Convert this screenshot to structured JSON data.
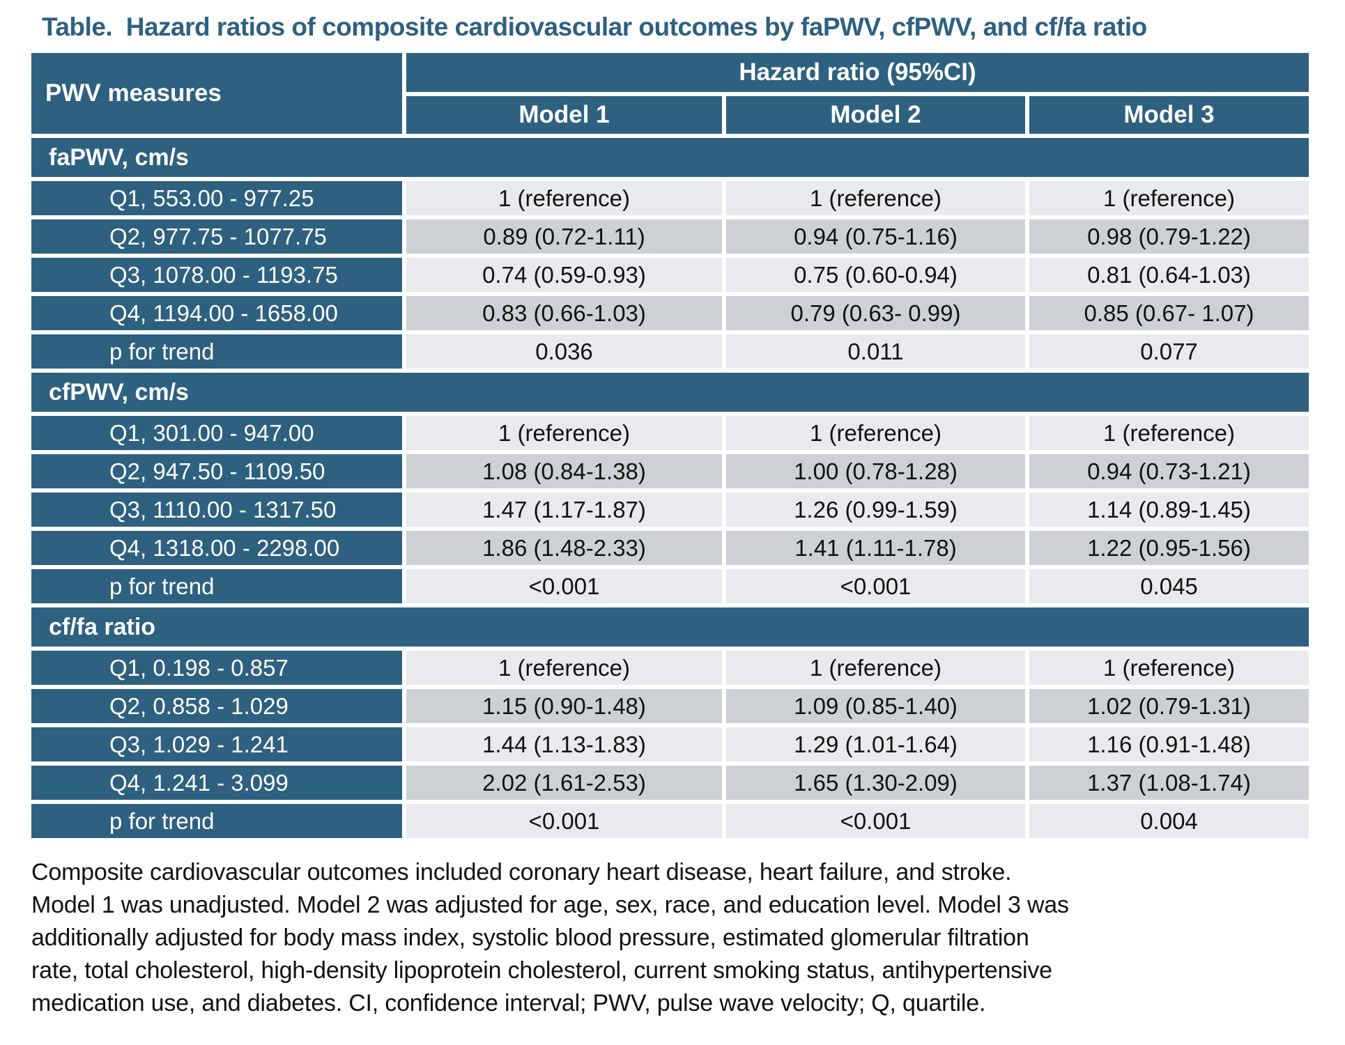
{
  "title": "Table.  Hazard ratios of composite cardiovascular outcomes by faPWV, cfPWV, and cf/fa ratio",
  "colors": {
    "header_blue": "#2E6080",
    "row_light": "#E8EAED",
    "row_dark": "#CDD1D5",
    "title_text": "#2E6080",
    "value_text": "#111111"
  },
  "table": {
    "row_header": "PWV measures",
    "group_header": "Hazard ratio (95%CI)",
    "model_headers": [
      "Model 1",
      "Model 2",
      "Model 3"
    ],
    "sections": [
      {
        "label": "faPWV, cm/s",
        "rows": [
          {
            "label": "Q1, 553.00 - 977.25",
            "values": [
              "1 (reference)",
              "1 (reference)",
              "1 (reference)"
            ]
          },
          {
            "label": "Q2, 977.75 - 1077.75",
            "values": [
              "0.89 (0.72-1.11)",
              "0.94 (0.75-1.16)",
              "0.98 (0.79-1.22)"
            ]
          },
          {
            "label": "Q3, 1078.00 - 1193.75",
            "values": [
              "0.74 (0.59-0.93)",
              "0.75 (0.60-0.94)",
              "0.81 (0.64-1.03)"
            ]
          },
          {
            "label": "Q4, 1194.00 - 1658.00",
            "values": [
              "0.83 (0.66-1.03)",
              "0.79 (0.63- 0.99)",
              "0.85 (0.67- 1.07)"
            ]
          },
          {
            "label": "p for trend",
            "values": [
              "0.036",
              "0.011",
              "0.077"
            ]
          }
        ]
      },
      {
        "label": "cfPWV, cm/s",
        "rows": [
          {
            "label": "Q1, 301.00 - 947.00",
            "values": [
              "1 (reference)",
              "1 (reference)",
              "1 (reference)"
            ]
          },
          {
            "label": "Q2, 947.50 - 1109.50",
            "values": [
              "1.08 (0.84-1.38)",
              "1.00 (0.78-1.28)",
              "0.94 (0.73-1.21)"
            ]
          },
          {
            "label": "Q3, 1110.00 - 1317.50",
            "values": [
              "1.47 (1.17-1.87)",
              "1.26 (0.99-1.59)",
              "1.14 (0.89-1.45)"
            ]
          },
          {
            "label": "Q4, 1318.00 - 2298.00",
            "values": [
              "1.86 (1.48-2.33)",
              "1.41 (1.11-1.78)",
              "1.22 (0.95-1.56)"
            ]
          },
          {
            "label": "p for trend",
            "values": [
              "<0.001",
              "<0.001",
              "0.045"
            ]
          }
        ]
      },
      {
        "label": "cf/fa ratio",
        "rows": [
          {
            "label": "Q1, 0.198 - 0.857",
            "values": [
              "1 (reference)",
              "1 (reference)",
              "1 (reference)"
            ]
          },
          {
            "label": "Q2, 0.858 - 1.029",
            "values": [
              "1.15 (0.90-1.48)",
              "1.09 (0.85-1.40)",
              "1.02 (0.79-1.31)"
            ]
          },
          {
            "label": "Q3, 1.029 - 1.241",
            "values": [
              "1.44 (1.13-1.83)",
              "1.29 (1.01-1.64)",
              "1.16 (0.91-1.48)"
            ]
          },
          {
            "label": "Q4, 1.241 - 3.099",
            "values": [
              "2.02 (1.61-2.53)",
              "1.65 (1.30-2.09)",
              "1.37 (1.08-1.74)"
            ]
          },
          {
            "label": "p for trend",
            "values": [
              "<0.001",
              "<0.001",
              "0.004"
            ]
          }
        ]
      }
    ]
  },
  "footnote_lines": [
    "Composite cardiovascular outcomes included coronary heart disease, heart failure, and stroke.",
    "Model 1 was unadjusted. Model 2 was adjusted for age, sex, race, and education level. Model 3 was",
    "additionally adjusted for body mass index, systolic blood pressure, estimated glomerular filtration",
    "rate, total cholesterol, high-density lipoprotein cholesterol, current smoking status, antihypertensive",
    "medication use, and diabetes. CI, confidence interval; PWV, pulse wave velocity; Q, quartile."
  ]
}
